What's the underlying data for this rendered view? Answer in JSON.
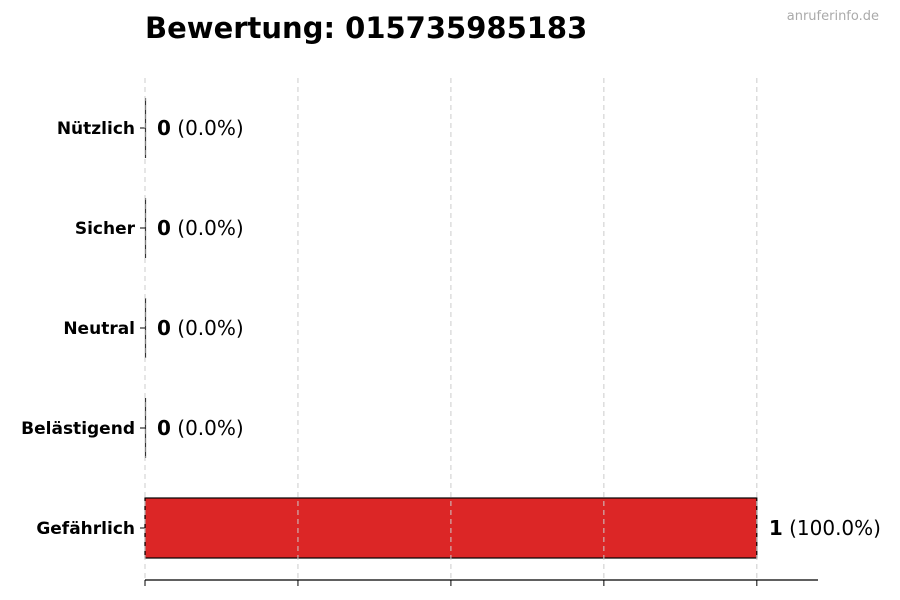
{
  "watermark": "anruferinfo.de",
  "chart_data": {
    "type": "bar",
    "orientation": "horizontal",
    "title": "Bewertung: 015735985183",
    "categories": [
      "Nützlich",
      "Sicher",
      "Neutral",
      "Belästigend",
      "Gefährlich"
    ],
    "values": [
      0,
      0,
      0,
      0,
      1
    ],
    "data_labels": [
      "(0.0%)",
      "(0.0%)",
      "(0.0%)",
      "(0.0%)",
      "(100.0%)"
    ],
    "xlim": [
      0,
      1.1
    ],
    "xticks": [
      0,
      0.25,
      0.5,
      0.75,
      1
    ],
    "grid": "x-dashed",
    "colors": {
      "bar": "#dc2626",
      "edge": "#000000",
      "grid": "#cccccc"
    }
  }
}
